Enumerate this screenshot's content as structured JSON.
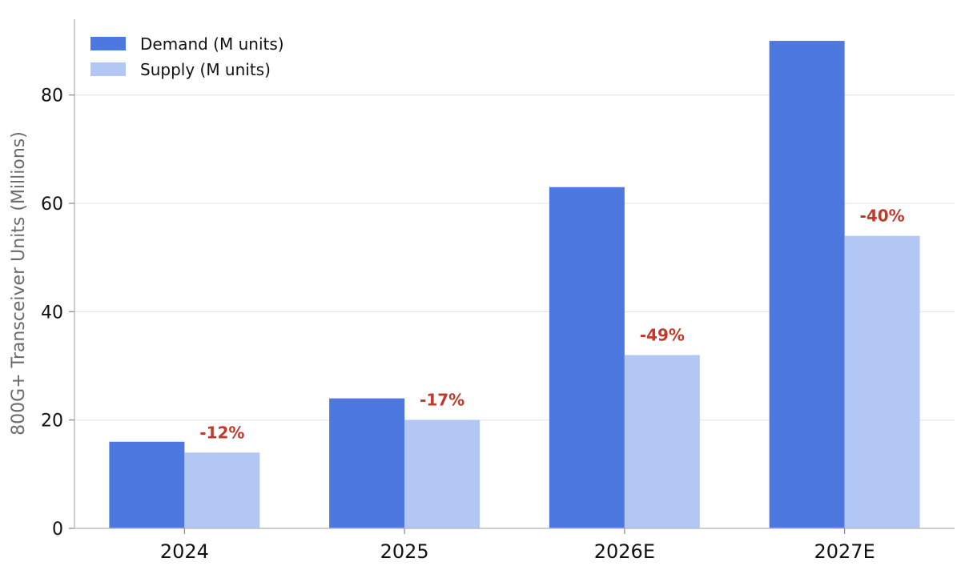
{
  "chart_data": {
    "type": "bar",
    "categories": [
      "2024",
      "2025",
      "2026E",
      "2027E"
    ],
    "series": [
      {
        "name": "Demand (M units)",
        "values": [
          16,
          24,
          63,
          90
        ],
        "color": "#4c78df"
      },
      {
        "name": "Supply (M units)",
        "values": [
          14,
          20,
          32,
          54
        ],
        "color": "#b3c7f4"
      }
    ],
    "annotations": [
      "-12%",
      "-17%",
      "-49%",
      "-40%"
    ],
    "annotation_color": "#c0392b",
    "title": "",
    "xlabel": "",
    "ylabel": "800G+ Transceiver Units (Millions)",
    "ylim": [
      0,
      94
    ],
    "yticks": [
      0,
      20,
      40,
      60,
      80
    ],
    "grid": "horizontal",
    "legend_position": "top-left"
  }
}
